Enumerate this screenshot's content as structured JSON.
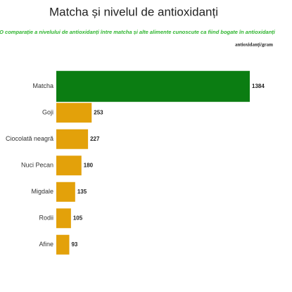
{
  "chart_data": {
    "type": "hbar",
    "title": "Matcha și nivelul de antioxidanți",
    "subtitle": "O comparație a nivelului de antioxidanți între matcha și alte alimente cunoscute ca fiind bogate în antioxidanți",
    "unit_label": "antioxidanți/gram",
    "categories": [
      "Matcha",
      "Goji",
      "Ciocolată neagră",
      "Nuci Pecan",
      "Migdale",
      "Rodii",
      "Afine"
    ],
    "values": [
      1384,
      253,
      227,
      180,
      135,
      105,
      93
    ],
    "colors": [
      "#0b7d12",
      "#e3a10a",
      "#e3a10a",
      "#e3a10a",
      "#e3a10a",
      "#e3a10a",
      "#e3a10a"
    ]
  }
}
